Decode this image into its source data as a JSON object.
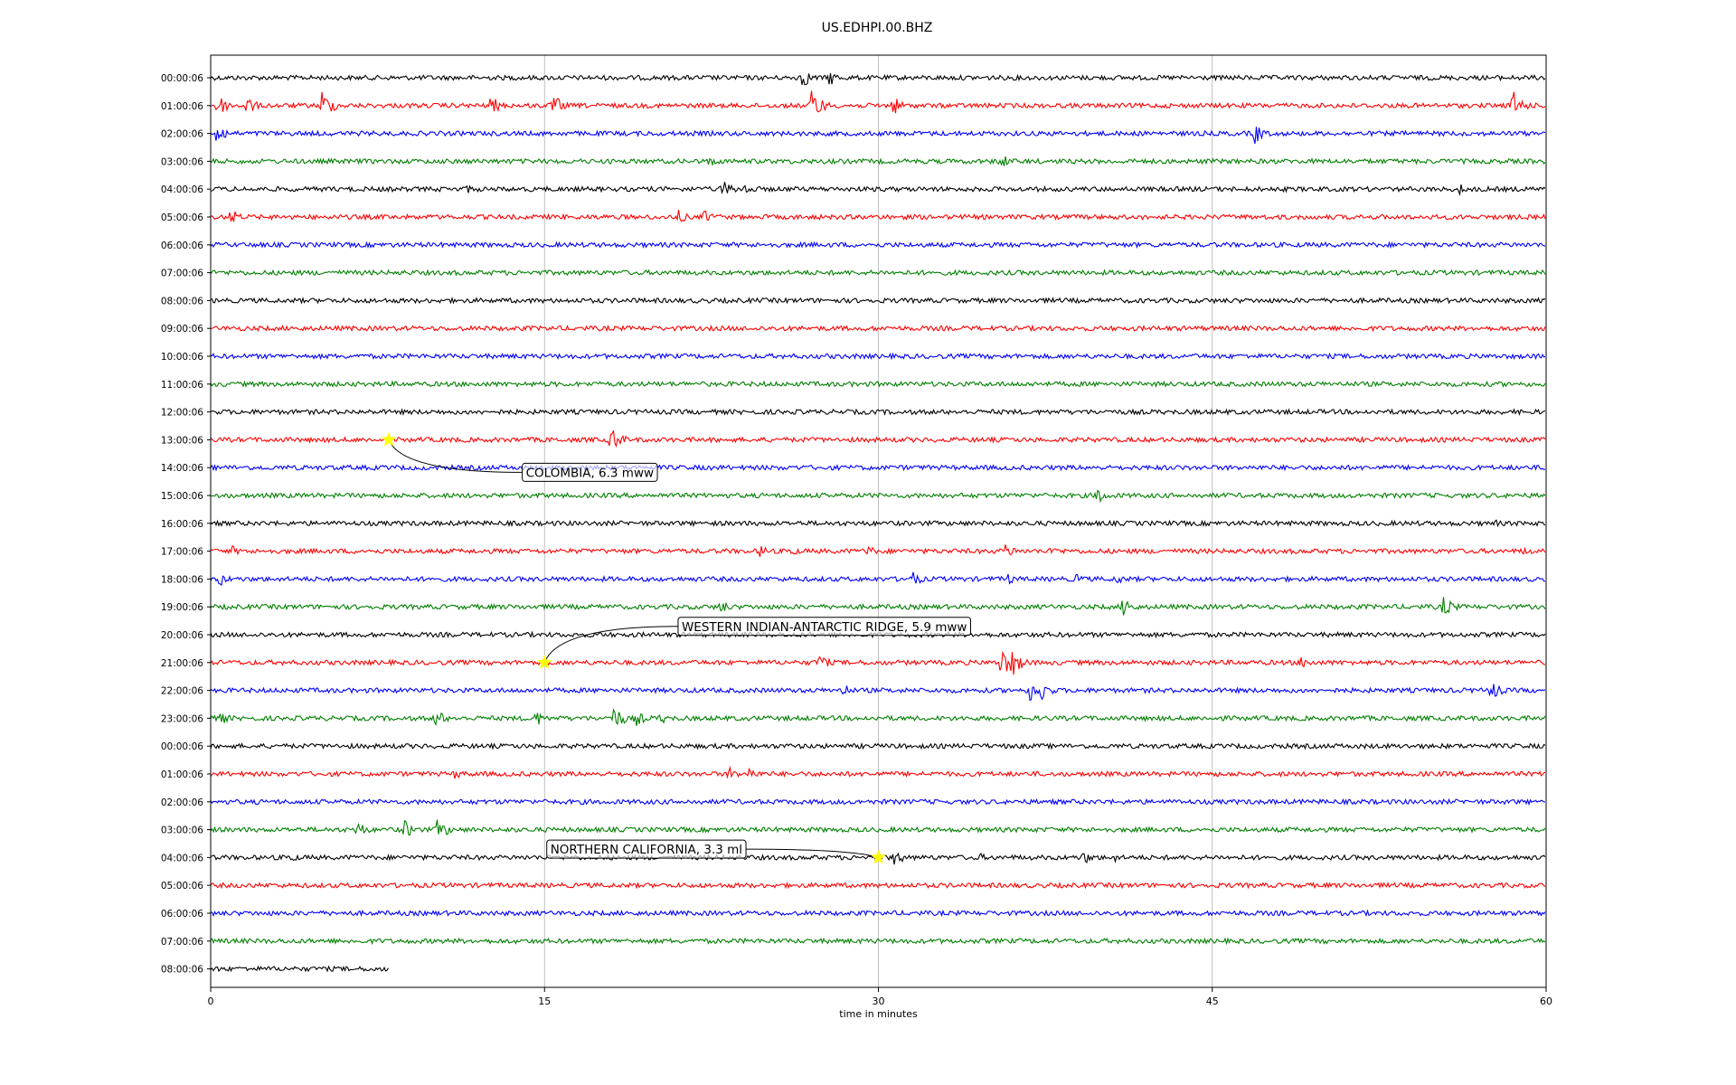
{
  "chart_data": {
    "type": "line",
    "title": "US.EDHPI.00.BHZ",
    "xlabel": "time in minutes",
    "ylabel": "",
    "xlim": [
      0,
      60
    ],
    "x_ticks": [
      "0",
      "15",
      "30",
      "45",
      "60"
    ],
    "x_tick_values": [
      0,
      15,
      30,
      45,
      60
    ],
    "grid": "vertical",
    "row_colors": [
      "#000000",
      "#ff0000",
      "#0000ff",
      "#008000"
    ],
    "rows": [
      {
        "label": "00:00:06"
      },
      {
        "label": "01:00:06"
      },
      {
        "label": "02:00:06"
      },
      {
        "label": "03:00:06"
      },
      {
        "label": "04:00:06"
      },
      {
        "label": "05:00:06"
      },
      {
        "label": "06:00:06"
      },
      {
        "label": "07:00:06"
      },
      {
        "label": "08:00:06"
      },
      {
        "label": "09:00:06"
      },
      {
        "label": "10:00:06"
      },
      {
        "label": "11:00:06"
      },
      {
        "label": "12:00:06"
      },
      {
        "label": "13:00:06"
      },
      {
        "label": "14:00:06"
      },
      {
        "label": "15:00:06"
      },
      {
        "label": "16:00:06"
      },
      {
        "label": "17:00:06"
      },
      {
        "label": "18:00:06"
      },
      {
        "label": "19:00:06"
      },
      {
        "label": "20:00:06"
      },
      {
        "label": "21:00:06"
      },
      {
        "label": "22:00:06"
      },
      {
        "label": "23:00:06"
      },
      {
        "label": "00:00:06"
      },
      {
        "label": "01:00:06"
      },
      {
        "label": "02:00:06"
      },
      {
        "label": "03:00:06"
      },
      {
        "label": "04:00:06"
      },
      {
        "label": "05:00:06"
      },
      {
        "label": "06:00:06"
      },
      {
        "label": "07:00:06"
      },
      {
        "label": "08:00:06",
        "end_minute": 8
      }
    ],
    "bursts": [
      {
        "row": 0,
        "t": 26.5,
        "amp": 1.0
      },
      {
        "row": 0,
        "t": 27.8,
        "amp": 0.7
      },
      {
        "row": 1,
        "t": 0.3,
        "amp": 1.0
      },
      {
        "row": 1,
        "t": 1.6,
        "amp": 0.8
      },
      {
        "row": 1,
        "t": 5.0,
        "amp": 1.3
      },
      {
        "row": 1,
        "t": 12.6,
        "amp": 0.8
      },
      {
        "row": 1,
        "t": 15.4,
        "amp": 0.9
      },
      {
        "row": 1,
        "t": 27.0,
        "amp": 1.5
      },
      {
        "row": 1,
        "t": 30.6,
        "amp": 0.9
      },
      {
        "row": 1,
        "t": 58.5,
        "amp": 1.3
      },
      {
        "row": 2,
        "t": 0.2,
        "amp": 1.1
      },
      {
        "row": 2,
        "t": 46.9,
        "amp": 0.9
      },
      {
        "row": 3,
        "t": 22.4,
        "amp": 0.5
      },
      {
        "row": 3,
        "t": 35.5,
        "amp": 0.7
      },
      {
        "row": 4,
        "t": 11.5,
        "amp": 0.4
      },
      {
        "row": 4,
        "t": 23.0,
        "amp": 0.8
      },
      {
        "row": 4,
        "t": 24.0,
        "amp": 0.6
      },
      {
        "row": 4,
        "t": 56.0,
        "amp": 0.6
      },
      {
        "row": 5,
        "t": 0.9,
        "amp": 0.7
      },
      {
        "row": 5,
        "t": 21.0,
        "amp": 0.6
      },
      {
        "row": 5,
        "t": 22.2,
        "amp": 0.6
      },
      {
        "row": 13,
        "t": 18.0,
        "amp": 1.1
      },
      {
        "row": 15,
        "t": 39.8,
        "amp": 0.8
      },
      {
        "row": 16,
        "t": 57.6,
        "amp": 0.4
      },
      {
        "row": 17,
        "t": 0.9,
        "amp": 0.5
      },
      {
        "row": 17,
        "t": 24.7,
        "amp": 0.6
      },
      {
        "row": 17,
        "t": 26.0,
        "amp": 0.5
      },
      {
        "row": 17,
        "t": 29.5,
        "amp": 0.5
      },
      {
        "row": 17,
        "t": 35.7,
        "amp": 0.7
      },
      {
        "row": 17,
        "t": 37.8,
        "amp": 0.5
      },
      {
        "row": 17,
        "t": 59.0,
        "amp": 0.4
      },
      {
        "row": 18,
        "t": 0.4,
        "amp": 0.6
      },
      {
        "row": 18,
        "t": 31.5,
        "amp": 0.7
      },
      {
        "row": 18,
        "t": 35.8,
        "amp": 0.5
      },
      {
        "row": 18,
        "t": 38.9,
        "amp": 0.5
      },
      {
        "row": 18,
        "t": 40.7,
        "amp": 0.5
      },
      {
        "row": 19,
        "t": 22.9,
        "amp": 0.6
      },
      {
        "row": 19,
        "t": 41.0,
        "amp": 0.9
      },
      {
        "row": 19,
        "t": 55.4,
        "amp": 0.9
      },
      {
        "row": 21,
        "t": 27.3,
        "amp": 0.8
      },
      {
        "row": 21,
        "t": 35.5,
        "amp": 1.3
      },
      {
        "row": 21,
        "t": 36.0,
        "amp": 1.2
      },
      {
        "row": 21,
        "t": 49.0,
        "amp": 0.6
      },
      {
        "row": 22,
        "t": 28.4,
        "amp": 0.6
      },
      {
        "row": 22,
        "t": 36.8,
        "amp": 1.0
      },
      {
        "row": 22,
        "t": 37.3,
        "amp": 0.9
      },
      {
        "row": 22,
        "t": 57.5,
        "amp": 0.9
      },
      {
        "row": 23,
        "t": 0.4,
        "amp": 0.6
      },
      {
        "row": 23,
        "t": 10.1,
        "amp": 0.8
      },
      {
        "row": 23,
        "t": 14.6,
        "amp": 0.7
      },
      {
        "row": 23,
        "t": 18.1,
        "amp": 1.1
      },
      {
        "row": 23,
        "t": 19.1,
        "amp": 0.7
      },
      {
        "row": 23,
        "t": 20.2,
        "amp": 0.5
      },
      {
        "row": 25,
        "t": 11.0,
        "amp": 0.5
      },
      {
        "row": 25,
        "t": 23.3,
        "amp": 0.6
      },
      {
        "row": 25,
        "t": 24.2,
        "amp": 0.6
      },
      {
        "row": 27,
        "t": 6.6,
        "amp": 0.7
      },
      {
        "row": 27,
        "t": 8.7,
        "amp": 0.8
      },
      {
        "row": 27,
        "t": 10.2,
        "amp": 1.0
      },
      {
        "row": 28,
        "t": 3.5,
        "amp": 0.5
      },
      {
        "row": 28,
        "t": 30.6,
        "amp": 0.9
      },
      {
        "row": 28,
        "t": 34.5,
        "amp": 0.4
      },
      {
        "row": 28,
        "t": 39.2,
        "amp": 0.6
      },
      {
        "row": 28,
        "t": 40.6,
        "amp": 0.4
      }
    ],
    "events": [
      {
        "label": "COLOMBIA, 6.3 mww",
        "row": 13,
        "t": 8.0,
        "label_row": 14.17,
        "label_t": 14.0
      },
      {
        "label": "WESTERN INDIAN-ANTARCTIC RIDGE, 5.9 mww",
        "row": 21,
        "t": 15.0,
        "label_row": 19.7,
        "label_t": 21.0
      },
      {
        "label": "NORTHERN CALIFORNIA, 3.3 ml",
        "row": 28,
        "t": 30.0,
        "label_row": 27.7,
        "label_t": 15.1
      }
    ]
  }
}
